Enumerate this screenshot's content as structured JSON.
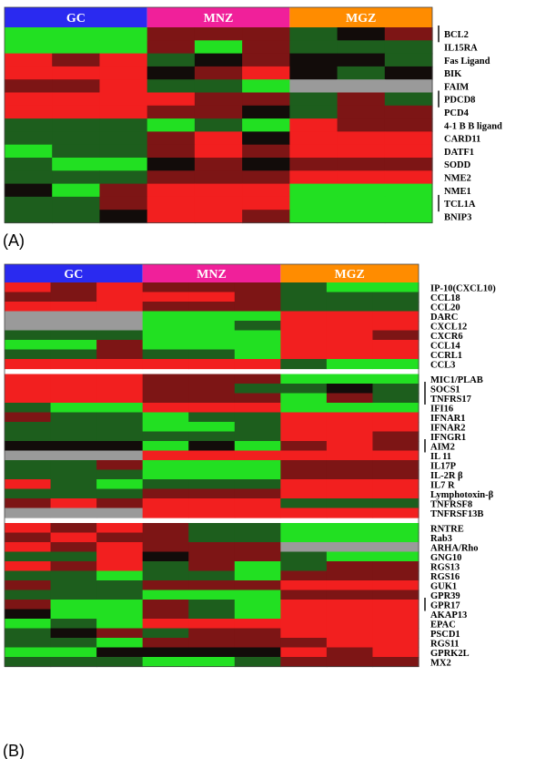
{
  "colors": {
    "GC": "#2a2af0",
    "MNZ": "#f0209a",
    "MGZ": "#ff8c00",
    "missing": "#9a9a9a"
  },
  "chart_data": [
    {
      "type": "heatmap",
      "panel_label": "(A)",
      "groups": [
        "GC",
        "MNZ",
        "MGZ"
      ],
      "columns_per_group": 3,
      "row_labels": [
        "BCL2",
        "IL15RA",
        "Fas Ligand",
        "BIK",
        "FAIM",
        "PDCD8",
        "PCD4",
        "4-1 B B ligand",
        "CARD11",
        "DATF1",
        "SODD",
        "NME2",
        "NME1",
        "TCL1A",
        "BNIP3"
      ],
      "values": [
        [
          "green",
          "green",
          "green",
          "dkred",
          "dkred",
          "dkred",
          "dkgrn",
          "black",
          "dkred"
        ],
        [
          "green",
          "green",
          "green",
          "dkred",
          "green",
          "dkred",
          "dkgrn",
          "dkgrn",
          "dkgrn"
        ],
        [
          "red",
          "dkred",
          "red",
          "dkgrn",
          "black",
          "dkred",
          "black",
          "black",
          "dkgrn"
        ],
        [
          "red",
          "red",
          "red",
          "black",
          "dkred",
          "red",
          "black",
          "dkgrn",
          "black"
        ],
        [
          "dkred",
          "dkred",
          "red",
          "dkgrn",
          "dkgrn",
          "green",
          "gray",
          "gray",
          "gray"
        ],
        [
          "red",
          "red",
          "red",
          "red",
          "dkred",
          "dkred",
          "dkgrn",
          "dkred",
          "dkgrn"
        ],
        [
          "red",
          "red",
          "red",
          "dkred",
          "dkred",
          "black",
          "dkgrn",
          "dkred",
          "dkred"
        ],
        [
          "dkgrn",
          "dkgrn",
          "dkgrn",
          "green",
          "dkgrn",
          "green",
          "red",
          "dkred",
          "dkred"
        ],
        [
          "dkgrn",
          "dkgrn",
          "dkgrn",
          "dkred",
          "red",
          "black",
          "red",
          "red",
          "red"
        ],
        [
          "green",
          "dkgrn",
          "dkgrn",
          "dkred",
          "red",
          "dkred",
          "red",
          "red",
          "red"
        ],
        [
          "dkgrn",
          "green",
          "green",
          "black",
          "dkred",
          "black",
          "dkred",
          "dkred",
          "dkred"
        ],
        [
          "dkgrn",
          "dkgrn",
          "dkgrn",
          "dkred",
          "dkred",
          "dkred",
          "red",
          "red",
          "red"
        ],
        [
          "black",
          "green",
          "dkred",
          "red",
          "red",
          "red",
          "green",
          "green",
          "green"
        ],
        [
          "dkgrn",
          "dkgrn",
          "dkred",
          "red",
          "red",
          "red",
          "green",
          "green",
          "green"
        ],
        [
          "dkgrn",
          "dkgrn",
          "black",
          "red",
          "red",
          "dkred",
          "green",
          "green",
          "green"
        ]
      ]
    },
    {
      "type": "heatmap",
      "panel_label": "(B)",
      "groups": [
        "GC",
        "MNZ",
        "MGZ"
      ],
      "columns_per_group": 3,
      "row_labels": [
        "IP-10(CXCL10)",
        "CCL18",
        "CCL20",
        "DARC",
        "CXCL12",
        "CXCR6",
        "CCL14",
        "CCRL1",
        "CCL3",
        "MIC1/PLAB",
        "SOCS1",
        "TNFRS17",
        "IFI16",
        "IFNAR1",
        "IFNAR2",
        "IFNGR1",
        "AIM2",
        "IL 11",
        "IL17P",
        "IL-2R β",
        "IL7 R",
        "Lymphotoxin-β",
        "TNFRSF8",
        "TNFRSF13B",
        "RNTRE",
        "Rab3",
        "ARHA/Rho",
        "GNG10",
        "RGS13",
        "RGS16",
        "GUK1",
        "GPR39",
        "GPR17",
        "AKAP13",
        "EPAC",
        "PSCD1",
        "RGS11",
        "GPRK2L",
        "MX2"
      ],
      "values": [
        [
          "red",
          "dkred",
          "red",
          "dkred",
          "dkred",
          "dkred",
          "dkgrn",
          "green",
          "green"
        ],
        [
          "dkred",
          "dkred",
          "red",
          "red",
          "red",
          "dkred",
          "dkgrn",
          "dkgrn",
          "dkgrn"
        ],
        [
          "red",
          "red",
          "red",
          "dkred",
          "dkred",
          "dkred",
          "dkgrn",
          "dkgrn",
          "dkgrn"
        ],
        [
          "gray",
          "gray",
          "gray",
          "green",
          "green",
          "green",
          "red",
          "red",
          "red"
        ],
        [
          "gray",
          "gray",
          "gray",
          "green",
          "green",
          "dkgrn",
          "red",
          "red",
          "red"
        ],
        [
          "dkgrn",
          "dkgrn",
          "dkgrn",
          "green",
          "green",
          "green",
          "red",
          "red",
          "dkred"
        ],
        [
          "green",
          "green",
          "dkred",
          "green",
          "green",
          "green",
          "red",
          "red",
          "red"
        ],
        [
          "dkgrn",
          "dkgrn",
          "dkred",
          "dkgrn",
          "dkgrn",
          "green",
          "red",
          "red",
          "red"
        ],
        [
          "red",
          "red",
          "red",
          "red",
          "red",
          "red",
          "dkgrn",
          "green",
          "green"
        ],
        [
          "red",
          "red",
          "red",
          "dkred",
          "dkred",
          "dkred",
          "green",
          "green",
          "green"
        ],
        [
          "red",
          "red",
          "red",
          "dkred",
          "dkred",
          "dkgrn",
          "dkgrn",
          "black",
          "dkgrn"
        ],
        [
          "red",
          "red",
          "red",
          "dkred",
          "dkred",
          "dkred",
          "green",
          "dkred",
          "dkgrn"
        ],
        [
          "dkgrn",
          "green",
          "green",
          "red",
          "red",
          "red",
          "green",
          "green",
          "green"
        ],
        [
          "dkred",
          "dkgrn",
          "dkgrn",
          "green",
          "dkgrn",
          "dkgrn",
          "red",
          "red",
          "red"
        ],
        [
          "dkgrn",
          "dkgrn",
          "dkgrn",
          "green",
          "green",
          "dkgrn",
          "red",
          "red",
          "red"
        ],
        [
          "dkgrn",
          "dkgrn",
          "dkgrn",
          "dkgrn",
          "dkgrn",
          "dkgrn",
          "red",
          "red",
          "dkred"
        ],
        [
          "black",
          "black",
          "black",
          "green",
          "black",
          "green",
          "dkred",
          "red",
          "dkred"
        ],
        [
          "gray",
          "gray",
          "gray",
          "red",
          "red",
          "red",
          "red",
          "red",
          "red"
        ],
        [
          "dkgrn",
          "dkgrn",
          "dkred",
          "green",
          "green",
          "green",
          "dkred",
          "dkred",
          "dkred"
        ],
        [
          "dkgrn",
          "dkgrn",
          "dkgrn",
          "green",
          "green",
          "green",
          "dkred",
          "dkred",
          "dkred"
        ],
        [
          "red",
          "dkgrn",
          "green",
          "dkgrn",
          "dkgrn",
          "dkgrn",
          "red",
          "red",
          "red"
        ],
        [
          "dkgrn",
          "dkgrn",
          "dkgrn",
          "dkred",
          "dkred",
          "dkred",
          "red",
          "red",
          "red"
        ],
        [
          "dkred",
          "red",
          "dkred",
          "red",
          "red",
          "red",
          "dkgrn",
          "dkgrn",
          "dkgrn"
        ],
        [
          "gray",
          "gray",
          "gray",
          "red",
          "red",
          "red",
          "red",
          "red",
          "red"
        ],
        [
          "red",
          "dkred",
          "red",
          "dkred",
          "dkgrn",
          "dkgrn",
          "green",
          "green",
          "green"
        ],
        [
          "dkred",
          "red",
          "dkred",
          "dkred",
          "dkgrn",
          "dkgrn",
          "green",
          "green",
          "green"
        ],
        [
          "red",
          "dkred",
          "red",
          "dkred",
          "dkred",
          "dkred",
          "gray",
          "gray",
          "gray"
        ],
        [
          "dkgrn",
          "dkgrn",
          "red",
          "black",
          "dkred",
          "dkred",
          "dkgrn",
          "green",
          "green"
        ],
        [
          "red",
          "dkred",
          "red",
          "dkgrn",
          "dkred",
          "green",
          "dkgrn",
          "dkred",
          "dkred"
        ],
        [
          "dkgrn",
          "dkgrn",
          "green",
          "dkgrn",
          "dkgrn",
          "green",
          "dkred",
          "dkred",
          "dkred"
        ],
        [
          "dkred",
          "dkgrn",
          "dkgrn",
          "dkred",
          "dkred",
          "dkred",
          "red",
          "red",
          "red"
        ],
        [
          "dkgrn",
          "dkgrn",
          "dkgrn",
          "green",
          "green",
          "green",
          "dkred",
          "dkred",
          "dkred"
        ],
        [
          "dkred",
          "green",
          "green",
          "dkred",
          "dkgrn",
          "green",
          "red",
          "red",
          "red"
        ],
        [
          "black",
          "green",
          "green",
          "dkred",
          "dkgrn",
          "green",
          "red",
          "red",
          "red"
        ],
        [
          "green",
          "dkgrn",
          "green",
          "red",
          "red",
          "red",
          "red",
          "red",
          "red"
        ],
        [
          "dkgrn",
          "black",
          "dkred",
          "dkgrn",
          "dkred",
          "dkred",
          "red",
          "red",
          "red"
        ],
        [
          "dkgrn",
          "dkgrn",
          "green",
          "dkred",
          "dkred",
          "dkred",
          "dkred",
          "red",
          "red"
        ],
        [
          "green",
          "green",
          "black",
          "black",
          "black",
          "black",
          "red",
          "dkred",
          "red"
        ],
        [
          "dkgrn",
          "dkgrn",
          "dkgrn",
          "green",
          "green",
          "dkgrn",
          "dkred",
          "dkred",
          "dkred"
        ]
      ]
    }
  ]
}
